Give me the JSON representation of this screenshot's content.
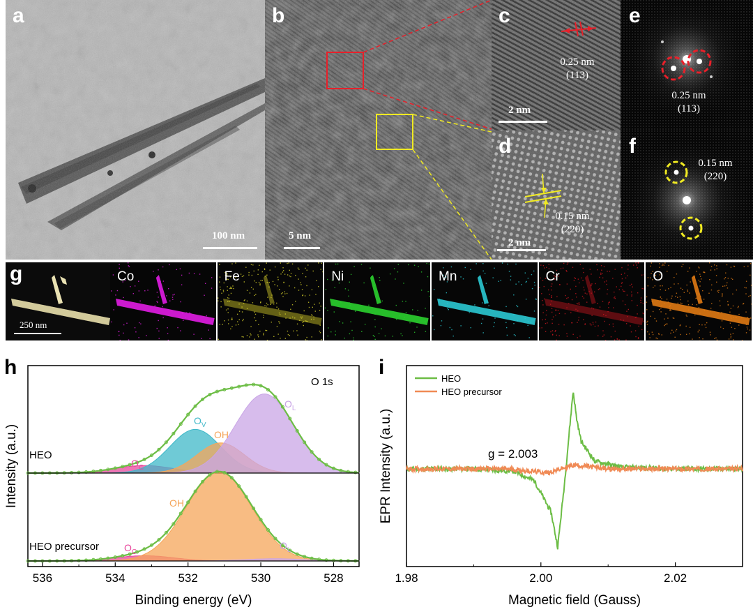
{
  "panels": {
    "a": {
      "letter": "a",
      "scale_bar": "100 nm"
    },
    "b": {
      "letter": "b",
      "scale_bar": "5 nm"
    },
    "c": {
      "letter": "c",
      "scale_bar": "2 nm",
      "d_spacing": "0.25 nm",
      "plane": "(113)"
    },
    "d": {
      "letter": "d",
      "scale_bar": "2 nm",
      "d_spacing": "0.15 nm",
      "plane": "(220)"
    },
    "e": {
      "letter": "e",
      "d_spacing": "0.25 nm",
      "plane": "(113)"
    },
    "f": {
      "letter": "f",
      "d_spacing": "0.15 nm",
      "plane": "(220)"
    },
    "g": {
      "letter": "g",
      "scale_bar": "250 nm",
      "elements": [
        {
          "label": "Co",
          "color": "#e21de4"
        },
        {
          "label": "Fe",
          "color": "#d6cf2a"
        },
        {
          "label": "Ni",
          "color": "#2bd12f"
        },
        {
          "label": "Mn",
          "color": "#2bc9d3"
        },
        {
          "label": "Cr",
          "color": "#c8161f"
        },
        {
          "label": "O",
          "color": "#e07a14"
        }
      ]
    }
  },
  "colors": {
    "red_box": "#e8202a",
    "yellow_box": "#f0ea22",
    "fit_green": "#6cbd45",
    "oc_pink": "#e8479c",
    "ov_cyan": "#3fb8c8",
    "oh_orange": "#f5a55a",
    "ol_purple": "#c9a5e6",
    "epr_orange": "#f08a55"
  },
  "chart_data": [
    {
      "panel": "h",
      "type": "area",
      "annotation": "O 1s",
      "xlabel": "Binding energy (eV)",
      "ylabel": "Intensity (a.u.)",
      "xlim": [
        536.4,
        527.3
      ],
      "x_reversed": true,
      "xticks": [
        "536",
        "534",
        "532",
        "530",
        "528"
      ],
      "xtick_values": [
        536,
        534,
        532,
        530,
        528
      ],
      "curves": [
        {
          "label": "HEO",
          "components": [
            {
              "name": "OC",
              "center": 533.2,
              "height": 0.1,
              "width": 0.8
            },
            {
              "name": "OV",
              "center": 531.8,
              "height": 0.58,
              "width": 0.7
            },
            {
              "name": "OH",
              "center": 531.1,
              "height": 0.4,
              "width": 0.65
            },
            {
              "name": "OL",
              "center": 529.9,
              "height": 1.05,
              "width": 0.8
            }
          ],
          "peak_labels": {
            "OC": "O",
            "OC_sub": "C",
            "OV": "O",
            "OV_sub": "V",
            "OH": "OH",
            "OL": "O",
            "OL_sub": "L"
          }
        },
        {
          "label": "HEO precursor",
          "components": [
            {
              "name": "OC",
              "center": 533.2,
              "height": 0.07,
              "width": 0.8
            },
            {
              "name": "OH",
              "center": 531.15,
              "height": 1.18,
              "width": 0.9
            },
            {
              "name": "OL",
              "center": 529.6,
              "height": 0.03,
              "width": 0.8
            }
          ],
          "peak_labels": {
            "OC": "O",
            "OC_sub": "C",
            "OH": "OH",
            "OL": "O",
            "OL_sub": "L"
          }
        }
      ]
    },
    {
      "panel": "i",
      "type": "line",
      "xlabel": "Magnetic field (Gauss)",
      "ylabel": "EPR Intensity (a.u.)",
      "xlim": [
        1.98,
        2.03
      ],
      "xticks": [
        "1.98",
        "2.00",
        "2.02"
      ],
      "xtick_values": [
        1.98,
        2.0,
        2.02
      ],
      "annotation": "g = 2.003",
      "series": [
        {
          "name": "HEO",
          "color": "#6cbd45",
          "x": [
            1.98,
            1.99,
            1.996,
            1.999,
            2.0015,
            2.0025,
            2.0035,
            2.0043,
            2.0048,
            2.0053,
            2.006,
            2.008,
            2.012,
            2.02,
            2.03
          ],
          "y": [
            0.0,
            0.0,
            -0.03,
            -0.15,
            -0.55,
            -1.0,
            -0.2,
            0.55,
            1.0,
            0.65,
            0.35,
            0.1,
            0.02,
            0.0,
            0.0
          ]
        },
        {
          "name": "HEO precursor",
          "color": "#f08a55",
          "x": [
            1.98,
            1.995,
            2.001,
            2.003,
            2.005,
            2.01,
            2.03
          ],
          "y": [
            0.0,
            0.0,
            -0.05,
            0.0,
            0.05,
            0.0,
            0.0
          ]
        }
      ]
    }
  ]
}
